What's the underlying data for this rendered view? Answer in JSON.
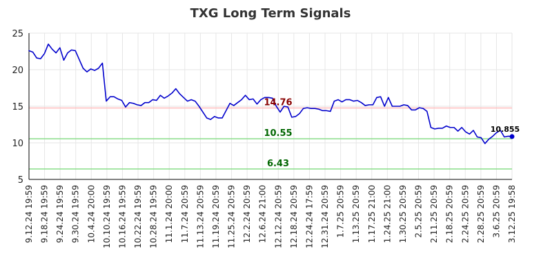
{
  "chart_data": {
    "type": "line",
    "title": "TXG Long Term Signals",
    "xlabel": "",
    "ylabel": "",
    "ylim": [
      5,
      25
    ],
    "yticks": [
      5,
      10,
      15,
      20,
      25
    ],
    "grid": true,
    "x_tick_labels": [
      "9.12.24 19:59",
      "9.18.24 19:59",
      "9.24.24 19:59",
      "9.30.24 19:59",
      "10.4.24 20:00",
      "10.10.24 19:59",
      "10.16.24 19:59",
      "10.22.24 19:59",
      "10.28.24 19:59",
      "11.1.24 20:00",
      "11.7.24 20:59",
      "11.13.24 20:59",
      "11.19.24 20:59",
      "11.25.24 20:59",
      "12.2.24 20:59",
      "12.6.24 21:00",
      "12.12.24 20:59",
      "12.18.24 20:59",
      "12.24.24 17:59",
      "12.31.24 20:59",
      "1.7.25 20:59",
      "1.13.25 20:59",
      "1.17.25 21:00",
      "1.24.25 21:00",
      "1.30.25 20:59",
      "2.5.25 20:59",
      "2.11.25 20:59",
      "2.18.25 20:59",
      "2.24.25 20:59",
      "2.28.25 20:59",
      "3.6.25 20:59",
      "3.12.25 19:58"
    ],
    "series": [
      {
        "color": "#0000cc",
        "values": [
          22.6,
          22.4,
          21.6,
          21.5,
          22.2,
          23.5,
          22.8,
          22.3,
          23.0,
          21.3,
          22.3,
          22.7,
          22.6,
          21.4,
          20.2,
          19.7,
          20.1,
          19.9,
          20.2,
          20.9,
          15.7,
          16.3,
          16.3,
          16.0,
          15.8,
          14.9,
          15.5,
          15.4,
          15.2,
          15.1,
          15.5,
          15.5,
          15.9,
          15.8,
          16.5,
          16.1,
          16.4,
          16.8,
          17.4,
          16.7,
          16.2,
          15.7,
          15.9,
          15.7,
          15.0,
          14.2,
          13.4,
          13.2,
          13.6,
          13.4,
          13.4,
          14.4,
          15.4,
          15.1,
          15.5,
          15.9,
          16.5,
          15.9,
          16.0,
          15.3,
          15.9,
          16.2,
          16.2,
          16.1,
          15.0,
          14.2,
          15.0,
          14.9,
          13.5,
          13.6,
          14.0,
          14.7,
          14.8,
          14.7,
          14.7,
          14.6,
          14.4,
          14.4,
          14.3,
          15.7,
          15.9,
          15.6,
          15.9,
          15.9,
          15.7,
          15.8,
          15.5,
          15.1,
          15.2,
          15.2,
          16.2,
          16.3,
          15.0,
          16.2,
          15.0,
          15.0,
          15.0,
          15.2,
          15.1,
          14.5,
          14.5,
          14.8,
          14.7,
          14.3,
          12.1,
          11.9,
          12.0,
          12.0,
          12.3,
          12.1,
          12.1,
          11.6,
          12.1,
          11.5,
          11.2,
          11.7,
          10.8,
          10.7,
          9.9,
          10.5,
          10.9,
          11.4,
          11.7,
          10.8,
          10.9,
          10.855
        ]
      }
    ],
    "reference_lines": [
      {
        "value": 14.76,
        "label": "14.76",
        "line_color": "#ffbbbb",
        "text_color": "#880000"
      },
      {
        "value": 10.55,
        "label": "10.55",
        "line_color": "#88dd88",
        "text_color": "#006600"
      },
      {
        "value": 6.43,
        "label": "6.43",
        "line_color": "#88dd88",
        "text_color": "#006600"
      }
    ],
    "last_value": {
      "value": 10.855,
      "label": "10.855"
    }
  }
}
